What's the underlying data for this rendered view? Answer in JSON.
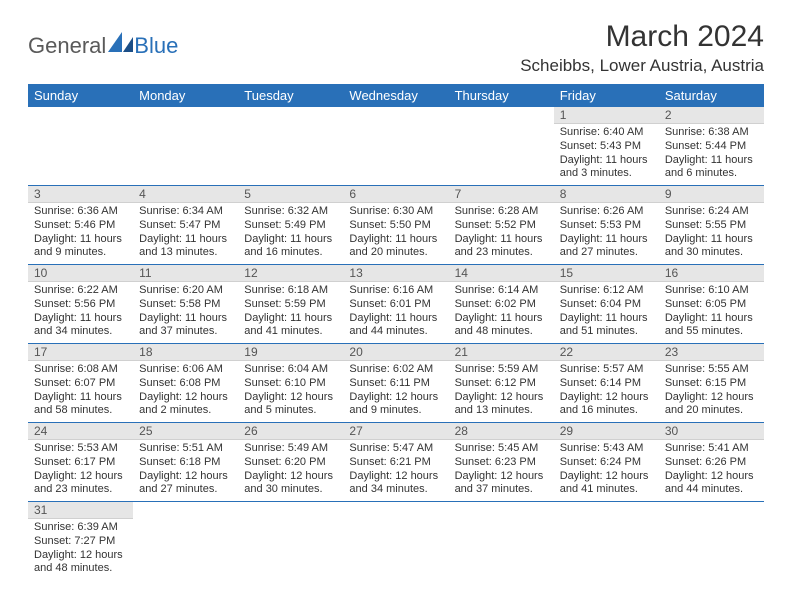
{
  "logo": {
    "text1": "General",
    "text2": "Blue"
  },
  "title": "March 2024",
  "location": "Scheibbs, Lower Austria, Austria",
  "colors": {
    "header_bg": "#2970b8",
    "header_text": "#ffffff",
    "daynum_bg": "#e6e6e6",
    "daynum_text": "#555555",
    "body_text": "#333333",
    "row_border": "#2970b8",
    "page_bg": "#ffffff",
    "logo_gray": "#5a5a5a",
    "logo_blue": "#2970b8"
  },
  "typography": {
    "title_fontsize": 30,
    "location_fontsize": 17,
    "header_fontsize": 13,
    "daynum_fontsize": 12,
    "body_fontsize": 11,
    "logo_fontsize": 22
  },
  "calendar": {
    "type": "table",
    "columns": [
      "Sunday",
      "Monday",
      "Tuesday",
      "Wednesday",
      "Thursday",
      "Friday",
      "Saturday"
    ],
    "weeks": [
      [
        null,
        null,
        null,
        null,
        null,
        {
          "n": "1",
          "sr": "Sunrise: 6:40 AM",
          "ss": "Sunset: 5:43 PM",
          "d1": "Daylight: 11 hours",
          "d2": "and 3 minutes."
        },
        {
          "n": "2",
          "sr": "Sunrise: 6:38 AM",
          "ss": "Sunset: 5:44 PM",
          "d1": "Daylight: 11 hours",
          "d2": "and 6 minutes."
        }
      ],
      [
        {
          "n": "3",
          "sr": "Sunrise: 6:36 AM",
          "ss": "Sunset: 5:46 PM",
          "d1": "Daylight: 11 hours",
          "d2": "and 9 minutes."
        },
        {
          "n": "4",
          "sr": "Sunrise: 6:34 AM",
          "ss": "Sunset: 5:47 PM",
          "d1": "Daylight: 11 hours",
          "d2": "and 13 minutes."
        },
        {
          "n": "5",
          "sr": "Sunrise: 6:32 AM",
          "ss": "Sunset: 5:49 PM",
          "d1": "Daylight: 11 hours",
          "d2": "and 16 minutes."
        },
        {
          "n": "6",
          "sr": "Sunrise: 6:30 AM",
          "ss": "Sunset: 5:50 PM",
          "d1": "Daylight: 11 hours",
          "d2": "and 20 minutes."
        },
        {
          "n": "7",
          "sr": "Sunrise: 6:28 AM",
          "ss": "Sunset: 5:52 PM",
          "d1": "Daylight: 11 hours",
          "d2": "and 23 minutes."
        },
        {
          "n": "8",
          "sr": "Sunrise: 6:26 AM",
          "ss": "Sunset: 5:53 PM",
          "d1": "Daylight: 11 hours",
          "d2": "and 27 minutes."
        },
        {
          "n": "9",
          "sr": "Sunrise: 6:24 AM",
          "ss": "Sunset: 5:55 PM",
          "d1": "Daylight: 11 hours",
          "d2": "and 30 minutes."
        }
      ],
      [
        {
          "n": "10",
          "sr": "Sunrise: 6:22 AM",
          "ss": "Sunset: 5:56 PM",
          "d1": "Daylight: 11 hours",
          "d2": "and 34 minutes."
        },
        {
          "n": "11",
          "sr": "Sunrise: 6:20 AM",
          "ss": "Sunset: 5:58 PM",
          "d1": "Daylight: 11 hours",
          "d2": "and 37 minutes."
        },
        {
          "n": "12",
          "sr": "Sunrise: 6:18 AM",
          "ss": "Sunset: 5:59 PM",
          "d1": "Daylight: 11 hours",
          "d2": "and 41 minutes."
        },
        {
          "n": "13",
          "sr": "Sunrise: 6:16 AM",
          "ss": "Sunset: 6:01 PM",
          "d1": "Daylight: 11 hours",
          "d2": "and 44 minutes."
        },
        {
          "n": "14",
          "sr": "Sunrise: 6:14 AM",
          "ss": "Sunset: 6:02 PM",
          "d1": "Daylight: 11 hours",
          "d2": "and 48 minutes."
        },
        {
          "n": "15",
          "sr": "Sunrise: 6:12 AM",
          "ss": "Sunset: 6:04 PM",
          "d1": "Daylight: 11 hours",
          "d2": "and 51 minutes."
        },
        {
          "n": "16",
          "sr": "Sunrise: 6:10 AM",
          "ss": "Sunset: 6:05 PM",
          "d1": "Daylight: 11 hours",
          "d2": "and 55 minutes."
        }
      ],
      [
        {
          "n": "17",
          "sr": "Sunrise: 6:08 AM",
          "ss": "Sunset: 6:07 PM",
          "d1": "Daylight: 11 hours",
          "d2": "and 58 minutes."
        },
        {
          "n": "18",
          "sr": "Sunrise: 6:06 AM",
          "ss": "Sunset: 6:08 PM",
          "d1": "Daylight: 12 hours",
          "d2": "and 2 minutes."
        },
        {
          "n": "19",
          "sr": "Sunrise: 6:04 AM",
          "ss": "Sunset: 6:10 PM",
          "d1": "Daylight: 12 hours",
          "d2": "and 5 minutes."
        },
        {
          "n": "20",
          "sr": "Sunrise: 6:02 AM",
          "ss": "Sunset: 6:11 PM",
          "d1": "Daylight: 12 hours",
          "d2": "and 9 minutes."
        },
        {
          "n": "21",
          "sr": "Sunrise: 5:59 AM",
          "ss": "Sunset: 6:12 PM",
          "d1": "Daylight: 12 hours",
          "d2": "and 13 minutes."
        },
        {
          "n": "22",
          "sr": "Sunrise: 5:57 AM",
          "ss": "Sunset: 6:14 PM",
          "d1": "Daylight: 12 hours",
          "d2": "and 16 minutes."
        },
        {
          "n": "23",
          "sr": "Sunrise: 5:55 AM",
          "ss": "Sunset: 6:15 PM",
          "d1": "Daylight: 12 hours",
          "d2": "and 20 minutes."
        }
      ],
      [
        {
          "n": "24",
          "sr": "Sunrise: 5:53 AM",
          "ss": "Sunset: 6:17 PM",
          "d1": "Daylight: 12 hours",
          "d2": "and 23 minutes."
        },
        {
          "n": "25",
          "sr": "Sunrise: 5:51 AM",
          "ss": "Sunset: 6:18 PM",
          "d1": "Daylight: 12 hours",
          "d2": "and 27 minutes."
        },
        {
          "n": "26",
          "sr": "Sunrise: 5:49 AM",
          "ss": "Sunset: 6:20 PM",
          "d1": "Daylight: 12 hours",
          "d2": "and 30 minutes."
        },
        {
          "n": "27",
          "sr": "Sunrise: 5:47 AM",
          "ss": "Sunset: 6:21 PM",
          "d1": "Daylight: 12 hours",
          "d2": "and 34 minutes."
        },
        {
          "n": "28",
          "sr": "Sunrise: 5:45 AM",
          "ss": "Sunset: 6:23 PM",
          "d1": "Daylight: 12 hours",
          "d2": "and 37 minutes."
        },
        {
          "n": "29",
          "sr": "Sunrise: 5:43 AM",
          "ss": "Sunset: 6:24 PM",
          "d1": "Daylight: 12 hours",
          "d2": "and 41 minutes."
        },
        {
          "n": "30",
          "sr": "Sunrise: 5:41 AM",
          "ss": "Sunset: 6:26 PM",
          "d1": "Daylight: 12 hours",
          "d2": "and 44 minutes."
        }
      ],
      [
        {
          "n": "31",
          "sr": "Sunrise: 6:39 AM",
          "ss": "Sunset: 7:27 PM",
          "d1": "Daylight: 12 hours",
          "d2": "and 48 minutes."
        },
        null,
        null,
        null,
        null,
        null,
        null
      ]
    ]
  }
}
